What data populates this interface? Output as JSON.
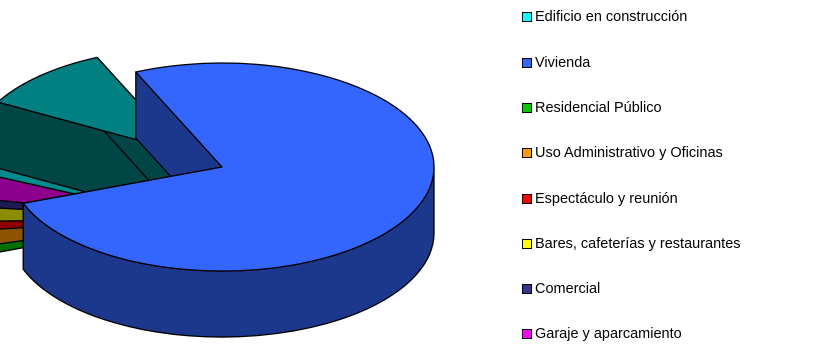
{
  "colors": {
    "edificio": "#00ffff",
    "vivienda": "#3366ff",
    "residencial": "#00cc00",
    "administrativo": "#ff9900",
    "espectaculo": "#ff0000",
    "bares": "#ffff00",
    "comercial": "#333399",
    "garaje": "#ff00ff",
    "other": "#008080"
  },
  "chart_data": {
    "type": "pie",
    "style": "3d-exploded",
    "title": "",
    "legend_position": "right",
    "categories": [
      "Edificio en construcción",
      "Vivienda",
      "Residencial Público",
      "Uso Administrativo y Oficinas",
      "Espectáculo y reunión",
      "Bares, cafeterías y restaurantes",
      "Comercial",
      "Garaje y aparcamiento"
    ],
    "slices": [
      {
        "label": "Vivienda",
        "value": 76.0,
        "color_key": "vivienda"
      },
      {
        "label": "Residencial Público",
        "value": 1.3,
        "color_key": "residencial"
      },
      {
        "label": "Uso Administrativo y Oficinas",
        "value": 2.5,
        "color_key": "administrativo"
      },
      {
        "label": "Espectáculo y reunión",
        "value": 1.4,
        "color_key": "espectaculo"
      },
      {
        "label": "Bares, cafeterías y restaurantes",
        "value": 2.3,
        "color_key": "bares"
      },
      {
        "label": "Comercial",
        "value": 1.3,
        "color_key": "comercial"
      },
      {
        "label": "Garaje y aparcamiento",
        "value": 3.7,
        "color_key": "garaje"
      },
      {
        "label": "Edificio en construcción",
        "value": 1.2,
        "color_key": "edificio"
      },
      {
        "label": "",
        "value": 10.3,
        "color_key": "other"
      }
    ]
  }
}
